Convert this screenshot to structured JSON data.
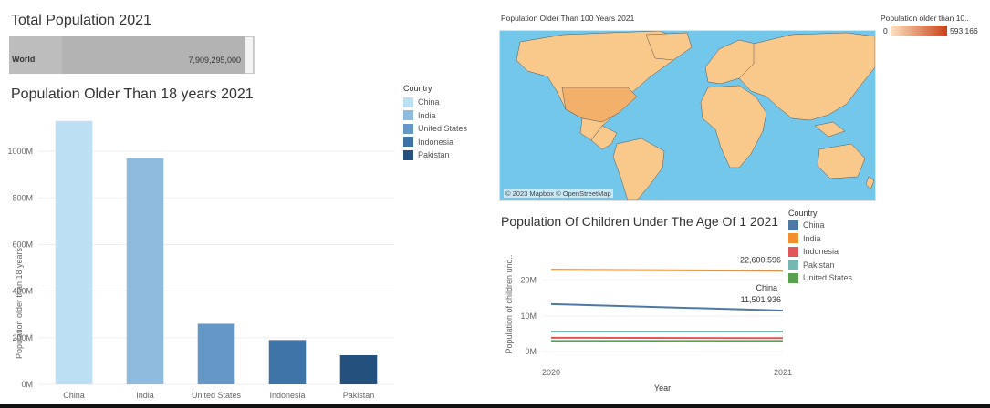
{
  "dashboard": {
    "total": {
      "title": "Total Population 2021",
      "row_label": "World",
      "value_text": "7,909,295,000",
      "value": 7909295000
    },
    "bar_legend": {
      "title": "Country",
      "items": [
        {
          "label": "China",
          "color": "#bcdff3"
        },
        {
          "label": "India",
          "color": "#8ebbde"
        },
        {
          "label": "United States",
          "color": "#6698c7"
        },
        {
          "label": "Indonesia",
          "color": "#3e73a8"
        },
        {
          "label": "Pakistan",
          "color": "#24507e"
        }
      ]
    },
    "map": {
      "title": "Population Older Than 100 Years 2021",
      "attribution": "© 2023 Mapbox © OpenStreetMap",
      "legend_title": "Population older than 10..",
      "legend_min": "0",
      "legend_max": "593,166",
      "color_low": "#fde2c0",
      "color_high": "#c8431a",
      "ocean_color": "#72c7ea",
      "land_color": "#f9c98c"
    },
    "line_legend": {
      "title": "Country",
      "items": [
        {
          "label": "China",
          "color": "#4e79a7"
        },
        {
          "label": "India",
          "color": "#f28e2b"
        },
        {
          "label": "Indonesia",
          "color": "#e15759"
        },
        {
          "label": "Pakistan",
          "color": "#76b7b2"
        },
        {
          "label": "United States",
          "color": "#59a14f"
        }
      ]
    }
  },
  "chart_data": [
    {
      "type": "bar",
      "title": "Population Older Than 18 years 2021",
      "ylabel": "Population older than 18 years",
      "xlabel": "",
      "categories": [
        "China",
        "India",
        "United States",
        "Indonesia",
        "Pakistan"
      ],
      "values": [
        1130000000,
        970000000,
        260000000,
        190000000,
        125000000
      ],
      "colors": [
        "#bcdff3",
        "#8ebbde",
        "#6698c7",
        "#3e73a8",
        "#24507e"
      ],
      "yticks": [
        0,
        200000000,
        400000000,
        600000000,
        800000000,
        1000000000
      ],
      "ytick_labels": [
        "0M",
        "200M",
        "400M",
        "600M",
        "800M",
        "1000M"
      ],
      "ylim": [
        0,
        1180000000
      ],
      "grid": true
    },
    {
      "type": "line",
      "title": "Population Of Children Under The Age Of 1 2021",
      "ylabel": "Population of children und..",
      "xlabel": "Year",
      "x": [
        2020,
        2021
      ],
      "xtick_labels": [
        "2020",
        "2021"
      ],
      "yticks": [
        0,
        10000000,
        20000000
      ],
      "ytick_labels": [
        "0M",
        "10M",
        "20M"
      ],
      "ylim": [
        -2500000,
        26500000
      ],
      "series": [
        {
          "name": "China",
          "values": [
            13300000,
            11501936
          ],
          "color": "#4e79a7"
        },
        {
          "name": "India",
          "values": [
            22900000,
            22600596
          ],
          "color": "#f28e2b"
        },
        {
          "name": "Indonesia",
          "values": [
            3900000,
            3800000
          ],
          "color": "#e15759"
        },
        {
          "name": "Pakistan",
          "values": [
            5600000,
            5600000
          ],
          "color": "#76b7b2"
        },
        {
          "name": "United States",
          "values": [
            3000000,
            3000000
          ],
          "color": "#59a14f"
        }
      ],
      "annotations": [
        {
          "series": "India",
          "name_label": "India",
          "value_label": "22,600,596"
        },
        {
          "series": "China",
          "name_label": "China",
          "value_label": "11,501,936"
        }
      ]
    }
  ]
}
